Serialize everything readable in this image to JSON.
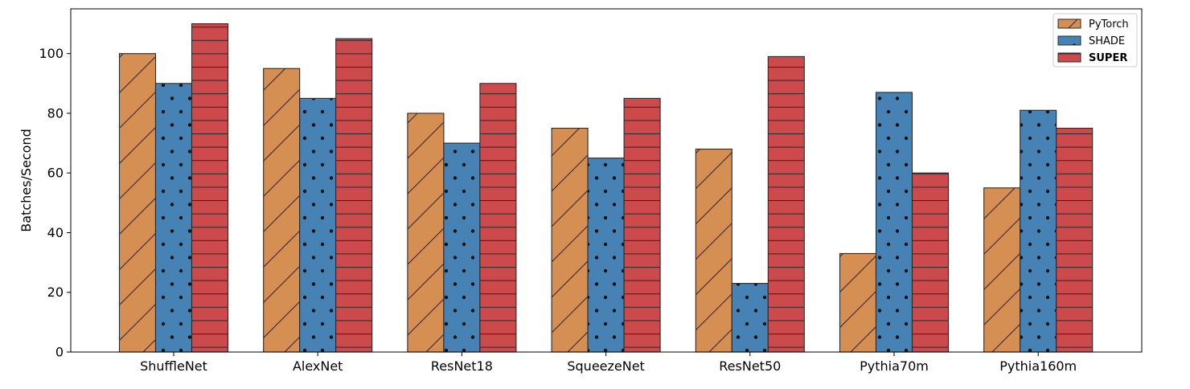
{
  "chart_data": {
    "type": "bar",
    "title": "",
    "xlabel": "",
    "ylabel": "Batches/Second",
    "categories": [
      "ShuffleNet",
      "AlexNet",
      "ResNet18",
      "SqueezeNet",
      "ResNet50",
      "Pythia70m",
      "Pythia160m"
    ],
    "series": [
      {
        "name": "PyTorch",
        "values": [
          100,
          95,
          80,
          75,
          68,
          33,
          55
        ],
        "color": "#d68f53",
        "pattern": "diagonal-hatch",
        "bold": false
      },
      {
        "name": "SHADE",
        "values": [
          90,
          85,
          70,
          65,
          23,
          87,
          81
        ],
        "color": "#4682b4",
        "pattern": "dots",
        "bold": false
      },
      {
        "name": "SUPER",
        "values": [
          110,
          105,
          90,
          85,
          99,
          60,
          75
        ],
        "color": "#cd4a4c",
        "pattern": "horizontal-hatch",
        "bold": true
      }
    ],
    "ylim": [
      0,
      115
    ],
    "yticks": [
      0,
      20,
      40,
      60,
      80,
      100
    ],
    "grid": false,
    "legend_position": "top-right"
  }
}
